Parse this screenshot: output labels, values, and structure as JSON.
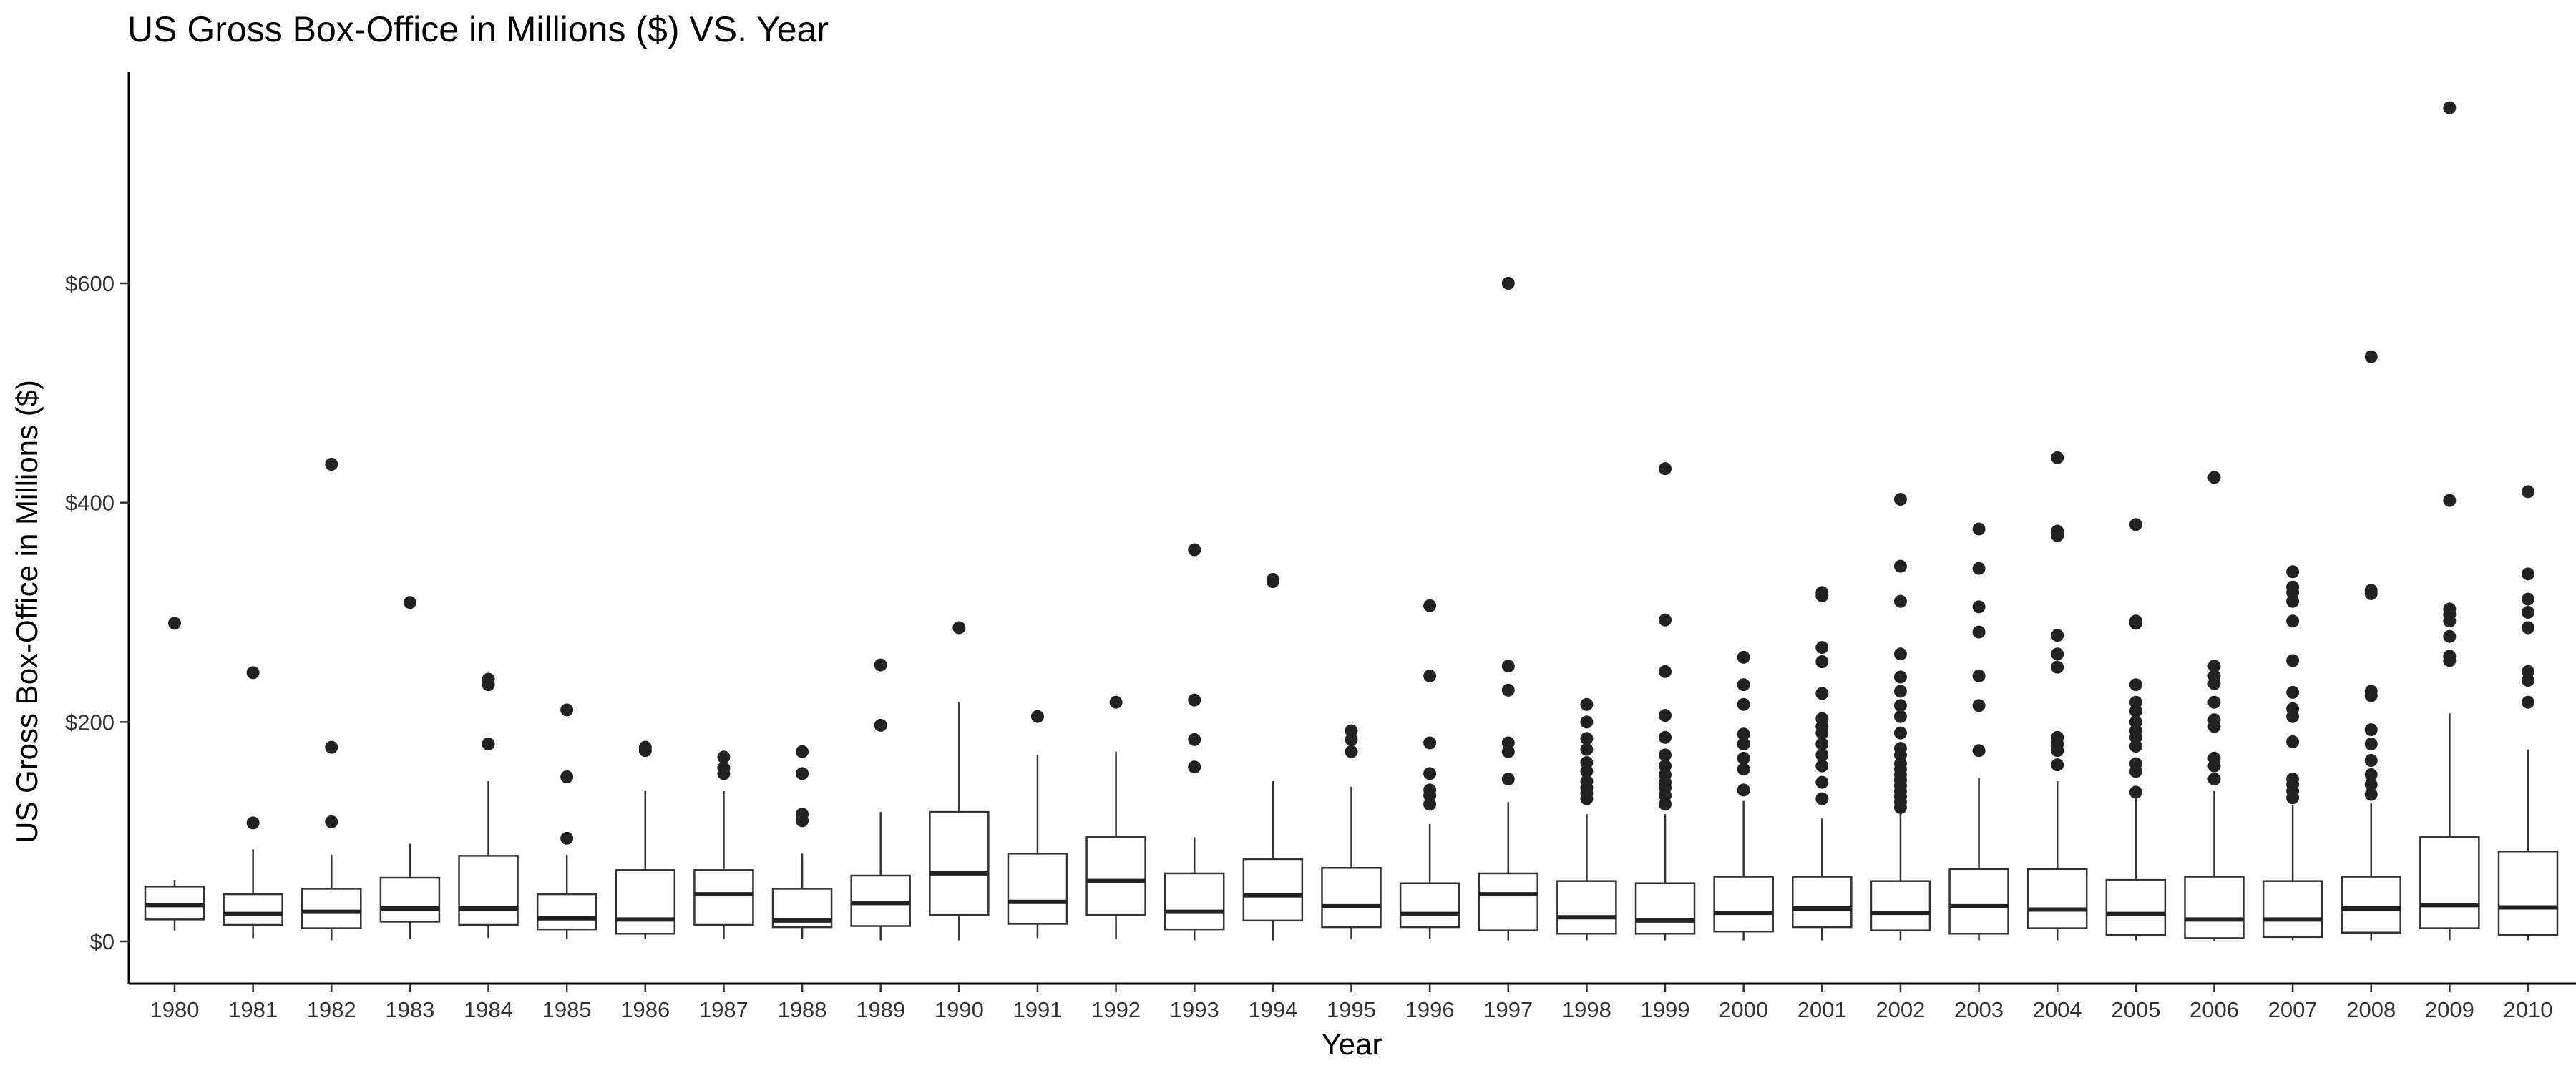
{
  "chart_data": {
    "type": "box",
    "title": "US Gross Box-Office in Millions ($) VS. Year",
    "xlabel": "Year",
    "ylabel": "US Gross Box-Office in Millions ($)",
    "ylim": [
      -35,
      800
    ],
    "yticks": [
      {
        "value": 0,
        "label": "$0"
      },
      {
        "value": 200,
        "label": "$200"
      },
      {
        "value": 400,
        "label": "$400"
      },
      {
        "value": 600,
        "label": "$600"
      }
    ],
    "grid": false,
    "legend": "none",
    "categories": [
      "1980",
      "1981",
      "1982",
      "1983",
      "1984",
      "1985",
      "1986",
      "1987",
      "1988",
      "1989",
      "1990",
      "1991",
      "1992",
      "1993",
      "1994",
      "1995",
      "1996",
      "1997",
      "1998",
      "1999",
      "2000",
      "2001",
      "2002",
      "2003",
      "2004",
      "2005",
      "2006",
      "2007",
      "2008",
      "2009",
      "2010"
    ],
    "boxes": [
      {
        "category": "1980",
        "whisker_low": 10,
        "q1": 20,
        "median": 33,
        "q3": 50,
        "whisker_high": 56,
        "outliers": [
          290
        ]
      },
      {
        "category": "1981",
        "whisker_low": 3,
        "q1": 15,
        "median": 25,
        "q3": 43,
        "whisker_high": 84,
        "outliers": [
          108,
          245
        ]
      },
      {
        "category": "1982",
        "whisker_low": 1,
        "q1": 12,
        "median": 27,
        "q3": 48,
        "whisker_high": 79,
        "outliers": [
          109,
          177,
          435
        ]
      },
      {
        "category": "1983",
        "whisker_low": 2,
        "q1": 18,
        "median": 30,
        "q3": 58,
        "whisker_high": 89,
        "outliers": [
          309
        ]
      },
      {
        "category": "1984",
        "whisker_low": 3,
        "q1": 15,
        "median": 30,
        "q3": 78,
        "whisker_high": 146,
        "outliers": [
          180,
          234,
          239
        ]
      },
      {
        "category": "1985",
        "whisker_low": 2,
        "q1": 11,
        "median": 21,
        "q3": 43,
        "whisker_high": 79,
        "outliers": [
          94,
          150,
          211
        ]
      },
      {
        "category": "1986",
        "whisker_low": 2,
        "q1": 7,
        "median": 20,
        "q3": 65,
        "whisker_high": 137,
        "outliers": [
          174,
          177
        ]
      },
      {
        "category": "1987",
        "whisker_low": 2,
        "q1": 15,
        "median": 43,
        "q3": 65,
        "whisker_high": 137,
        "outliers": [
          153,
          158,
          168
        ]
      },
      {
        "category": "1988",
        "whisker_low": 2,
        "q1": 13,
        "median": 19,
        "q3": 48,
        "whisker_high": 80,
        "outliers": [
          110,
          116,
          153,
          173
        ]
      },
      {
        "category": "1989",
        "whisker_low": 1,
        "q1": 14,
        "median": 35,
        "q3": 60,
        "whisker_high": 118,
        "outliers": [
          197,
          252
        ]
      },
      {
        "category": "1990",
        "whisker_low": 1,
        "q1": 24,
        "median": 62,
        "q3": 118,
        "whisker_high": 218,
        "outliers": [
          286
        ]
      },
      {
        "category": "1991",
        "whisker_low": 3,
        "q1": 16,
        "median": 36,
        "q3": 80,
        "whisker_high": 170,
        "outliers": [
          205
        ]
      },
      {
        "category": "1992",
        "whisker_low": 2,
        "q1": 24,
        "median": 55,
        "q3": 95,
        "whisker_high": 173,
        "outliers": [
          218
        ]
      },
      {
        "category": "1993",
        "whisker_low": 1,
        "q1": 11,
        "median": 27,
        "q3": 62,
        "whisker_high": 95,
        "outliers": [
          159,
          184,
          220,
          357
        ]
      },
      {
        "category": "1994",
        "whisker_low": 1,
        "q1": 19,
        "median": 42,
        "q3": 75,
        "whisker_high": 146,
        "outliers": [
          328,
          330
        ]
      },
      {
        "category": "1995",
        "whisker_low": 2,
        "q1": 13,
        "median": 32,
        "q3": 67,
        "whisker_high": 141,
        "outliers": [
          173,
          184,
          192
        ]
      },
      {
        "category": "1996",
        "whisker_low": 2,
        "q1": 13,
        "median": 25,
        "q3": 53,
        "whisker_high": 107,
        "outliers": [
          125,
          133,
          138,
          153,
          181,
          242,
          306
        ]
      },
      {
        "category": "1997",
        "whisker_low": 1,
        "q1": 10,
        "median": 43,
        "q3": 62,
        "whisker_high": 127,
        "outliers": [
          148,
          173,
          181,
          229,
          251,
          600
        ]
      },
      {
        "category": "1998",
        "whisker_low": 1,
        "q1": 7,
        "median": 22,
        "q3": 55,
        "whisker_high": 116,
        "outliers": [
          130,
          135,
          140,
          146,
          155,
          163,
          175,
          185,
          200,
          216
        ]
      },
      {
        "category": "1999",
        "whisker_low": 1,
        "q1": 7,
        "median": 19,
        "q3": 53,
        "whisker_high": 116,
        "outliers": [
          125,
          133,
          140,
          145,
          152,
          160,
          170,
          186,
          206,
          246,
          293,
          431
        ]
      },
      {
        "category": "2000",
        "whisker_low": 1,
        "q1": 9,
        "median": 26,
        "q3": 59,
        "whisker_high": 128,
        "outliers": [
          138,
          157,
          167,
          180,
          189,
          216,
          234,
          259
        ]
      },
      {
        "category": "2001",
        "whisker_low": 1,
        "q1": 13,
        "median": 30,
        "q3": 59,
        "whisker_high": 112,
        "outliers": [
          130,
          145,
          160,
          170,
          180,
          190,
          196,
          203,
          226,
          255,
          268,
          315,
          318
        ]
      },
      {
        "category": "2002",
        "whisker_low": 1,
        "q1": 10,
        "median": 26,
        "q3": 55,
        "whisker_high": 117,
        "outliers": [
          122,
          127,
          132,
          137,
          142,
          147,
          152,
          157,
          162,
          170,
          176,
          190,
          205,
          215,
          228,
          241,
          262,
          310,
          342,
          403
        ]
      },
      {
        "category": "2003",
        "whisker_low": 1,
        "q1": 7,
        "median": 32,
        "q3": 66,
        "whisker_high": 149,
        "outliers": [
          174,
          215,
          242,
          282,
          305,
          340,
          376
        ]
      },
      {
        "category": "2004",
        "whisker_low": 1,
        "q1": 12,
        "median": 29,
        "q3": 66,
        "whisker_high": 146,
        "outliers": [
          161,
          174,
          180,
          186,
          250,
          262,
          279,
          370,
          374,
          441
        ]
      },
      {
        "category": "2005",
        "whisker_low": 1,
        "q1": 6,
        "median": 25,
        "q3": 56,
        "whisker_high": 130,
        "outliers": [
          136,
          155,
          162,
          178,
          186,
          192,
          200,
          210,
          218,
          234,
          290,
          292,
          380
        ]
      },
      {
        "category": "2006",
        "whisker_low": 0,
        "q1": 3,
        "median": 20,
        "q3": 59,
        "whisker_high": 137,
        "outliers": [
          148,
          160,
          167,
          196,
          202,
          218,
          235,
          242,
          251,
          423
        ]
      },
      {
        "category": "2007",
        "whisker_low": 1,
        "q1": 4,
        "median": 20,
        "q3": 55,
        "whisker_high": 124,
        "outliers": [
          131,
          137,
          143,
          148,
          182,
          205,
          212,
          227,
          256,
          292,
          310,
          318,
          323,
          337
        ]
      },
      {
        "category": "2008",
        "whisker_low": 1,
        "q1": 8,
        "median": 30,
        "q3": 59,
        "whisker_high": 126,
        "outliers": [
          134,
          143,
          152,
          165,
          180,
          193,
          224,
          228,
          317,
          320,
          533
        ]
      },
      {
        "category": "2009",
        "whisker_low": 1,
        "q1": 12,
        "median": 33,
        "q3": 95,
        "whisker_high": 208,
        "outliers": [
          256,
          260,
          278,
          292,
          298,
          303,
          402,
          760
        ]
      },
      {
        "category": "2010",
        "whisker_low": 1,
        "q1": 6,
        "median": 31,
        "q3": 82,
        "whisker_high": 175,
        "outliers": [
          218,
          238,
          246,
          286,
          300,
          312,
          335,
          410
        ]
      }
    ]
  }
}
